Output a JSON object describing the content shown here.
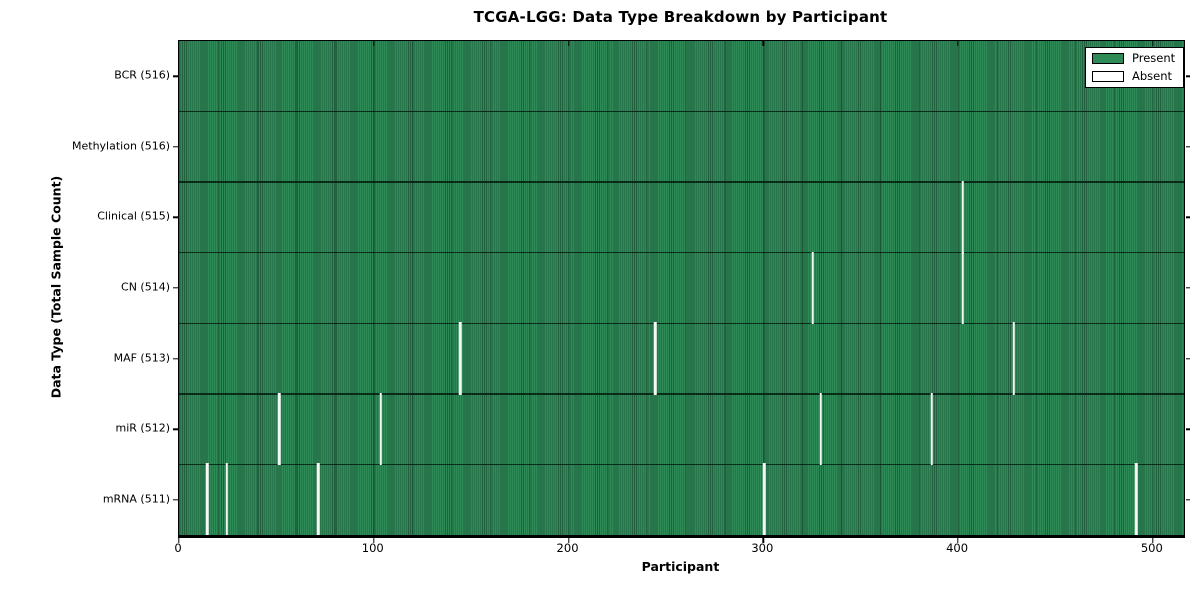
{
  "chart_data": {
    "type": "heatmap",
    "title": "TCGA-LGG: Data Type Breakdown by Participant",
    "xlabel": "Participant",
    "ylabel": "Data Type (Total Sample Count)",
    "x_ticks": [
      0,
      100,
      200,
      300,
      400,
      500
    ],
    "xlim": [
      0,
      516
    ],
    "n_participants": 516,
    "grid": false,
    "legend_position": "upper right",
    "colors": {
      "present": "#2e8b57",
      "absent": "#ffffff",
      "bar_edge": "#20603f"
    },
    "legend": [
      {
        "label": "Present",
        "color": "#2e8b57"
      },
      {
        "label": "Absent",
        "color": "#ffffff"
      }
    ],
    "rows": [
      {
        "label": "BCR (516)",
        "data_type": "BCR",
        "present_count": 516,
        "absent_count": 0,
        "absent_participants": []
      },
      {
        "label": "Methylation (516)",
        "data_type": "Methylation",
        "present_count": 516,
        "absent_count": 0,
        "absent_participants": []
      },
      {
        "label": "Clinical (515)",
        "data_type": "Clinical",
        "present_count": 515,
        "absent_count": 1,
        "absent_participants": [
          402
        ]
      },
      {
        "label": "CN (514)",
        "data_type": "CN",
        "present_count": 514,
        "absent_count": 2,
        "absent_participants": [
          325,
          402
        ]
      },
      {
        "label": "MAF (513)",
        "data_type": "MAF",
        "present_count": 513,
        "absent_count": 3,
        "absent_participants": [
          144,
          244,
          428
        ]
      },
      {
        "label": "miR (512)",
        "data_type": "miR",
        "present_count": 512,
        "absent_count": 4,
        "absent_participants": [
          51,
          103,
          329,
          386
        ]
      },
      {
        "label": "mRNA (511)",
        "data_type": "mRNA",
        "present_count": 511,
        "absent_count": 5,
        "absent_participants": [
          14,
          24,
          71,
          300,
          491
        ]
      }
    ]
  }
}
